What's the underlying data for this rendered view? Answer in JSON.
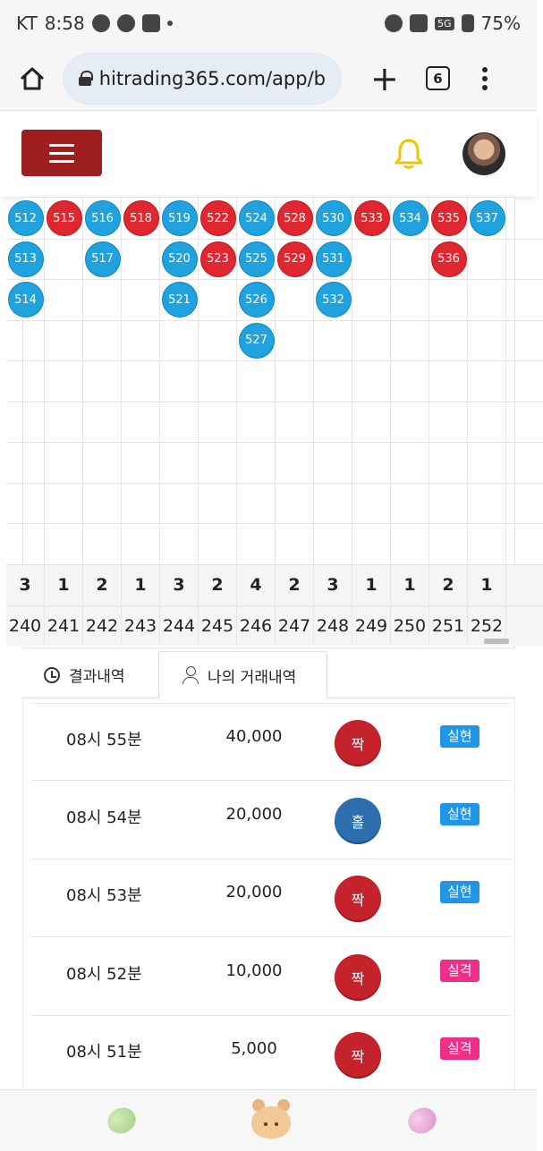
{
  "status_bar": {
    "carrier": "KT",
    "time": "8:58",
    "network": "5G",
    "battery": "75%"
  },
  "browser": {
    "url": "hitrading365.com/app/b",
    "tab_count": "6"
  },
  "bead_grid": {
    "columns": [
      {
        "round": "240",
        "count": "3",
        "beads": [
          {
            "n": "512",
            "c": "blue"
          },
          {
            "n": "513",
            "c": "blue"
          },
          {
            "n": "514",
            "c": "blue"
          }
        ]
      },
      {
        "round": "241",
        "count": "1",
        "beads": [
          {
            "n": "515",
            "c": "red"
          }
        ]
      },
      {
        "round": "242",
        "count": "2",
        "beads": [
          {
            "n": "516",
            "c": "blue"
          },
          {
            "n": "517",
            "c": "blue"
          }
        ]
      },
      {
        "round": "243",
        "count": "1",
        "beads": [
          {
            "n": "518",
            "c": "red"
          }
        ]
      },
      {
        "round": "244",
        "count": "3",
        "beads": [
          {
            "n": "519",
            "c": "blue"
          },
          {
            "n": "520",
            "c": "blue"
          },
          {
            "n": "521",
            "c": "blue"
          }
        ]
      },
      {
        "round": "245",
        "count": "2",
        "beads": [
          {
            "n": "522",
            "c": "red"
          },
          {
            "n": "523",
            "c": "red"
          }
        ]
      },
      {
        "round": "246",
        "count": "4",
        "beads": [
          {
            "n": "524",
            "c": "blue"
          },
          {
            "n": "525",
            "c": "blue"
          },
          {
            "n": "526",
            "c": "blue"
          },
          {
            "n": "527",
            "c": "blue"
          }
        ]
      },
      {
        "round": "247",
        "count": "2",
        "beads": [
          {
            "n": "528",
            "c": "red"
          },
          {
            "n": "529",
            "c": "red"
          }
        ]
      },
      {
        "round": "248",
        "count": "3",
        "beads": [
          {
            "n": "530",
            "c": "blue"
          },
          {
            "n": "531",
            "c": "blue"
          },
          {
            "n": "532",
            "c": "blue"
          }
        ]
      },
      {
        "round": "249",
        "count": "1",
        "beads": [
          {
            "n": "533",
            "c": "red"
          }
        ]
      },
      {
        "round": "250",
        "count": "1",
        "beads": [
          {
            "n": "534",
            "c": "blue"
          }
        ]
      },
      {
        "round": "251",
        "count": "2",
        "beads": [
          {
            "n": "535",
            "c": "red"
          },
          {
            "n": "536",
            "c": "red"
          }
        ]
      },
      {
        "round": "252",
        "count": "1",
        "beads": [
          {
            "n": "537",
            "c": "blue"
          }
        ]
      }
    ],
    "colors": {
      "red": "#e0262f",
      "blue": "#1fa2de"
    }
  },
  "tabs": [
    {
      "label": "결과내역",
      "icon": "history-icon"
    },
    {
      "label": "나의 거래내역",
      "icon": "user-icon",
      "active": true
    }
  ],
  "trades": [
    {
      "time": "08시 55분",
      "amount": "40,000",
      "result": "짝",
      "result_type": "even",
      "status": "실현",
      "status_type": "win"
    },
    {
      "time": "08시 54분",
      "amount": "20,000",
      "result": "홀",
      "result_type": "odd",
      "status": "실현",
      "status_type": "win"
    },
    {
      "time": "08시 53분",
      "amount": "20,000",
      "result": "짝",
      "result_type": "even",
      "status": "실현",
      "status_type": "win"
    },
    {
      "time": "08시 52분",
      "amount": "10,000",
      "result": "짝",
      "result_type": "even",
      "status": "실격",
      "status_type": "lose"
    },
    {
      "time": "08시 51분",
      "amount": "5,000",
      "result": "짝",
      "result_type": "even",
      "status": "실격",
      "status_type": "lose"
    }
  ],
  "bottom_nav": [
    {
      "icon": "green-bean-icon"
    },
    {
      "icon": "bear-icon"
    },
    {
      "icon": "pink-bean-icon"
    }
  ]
}
